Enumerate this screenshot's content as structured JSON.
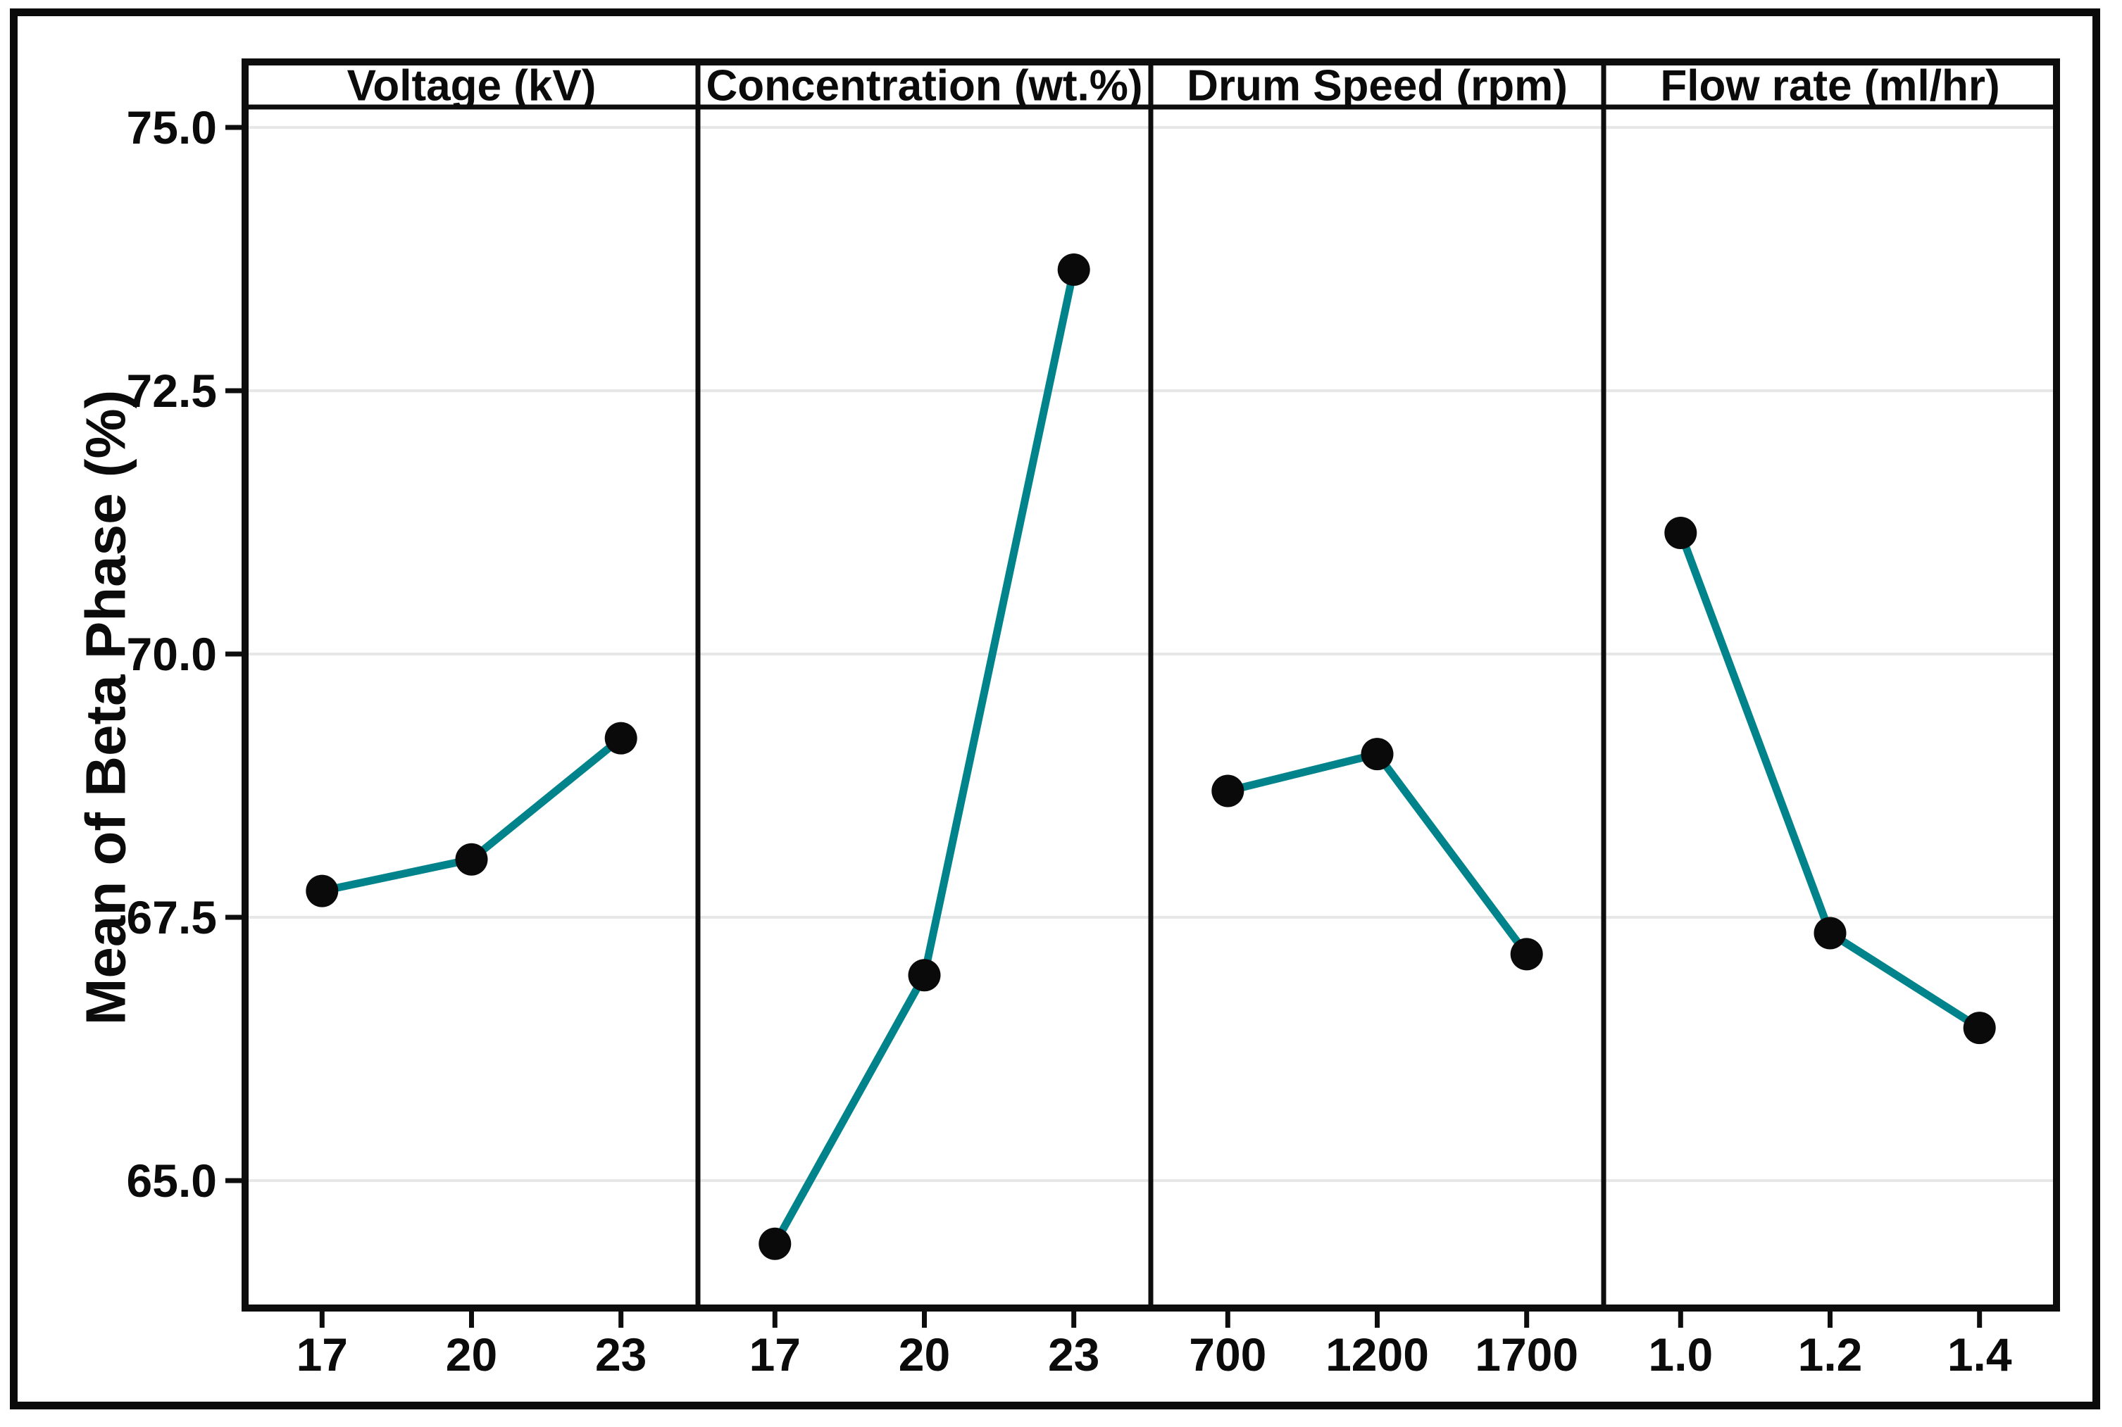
{
  "figure": {
    "kind": "main-effects-plot"
  },
  "chart_data": {
    "type": "line",
    "title": "",
    "ylabel": "Mean of Beta Phase (%)",
    "ylim": [
      63.8,
      75.2
    ],
    "ytick_labels": [
      "75.0",
      "72.5",
      "70.0",
      "67.5",
      "65.0"
    ],
    "ytick_values": [
      75.0,
      72.5,
      70.0,
      67.5,
      65.0
    ],
    "grid": "horizontal-gridlines-on",
    "legend_position": "none",
    "line_color": "#00838A",
    "marker_color": "#0a0a0a",
    "frame_color": "#0d0d0d",
    "gridline_color": "#e7e7e7",
    "panels": [
      {
        "title": "Voltage (kV)",
        "categories": [
          "17",
          "20",
          "23"
        ],
        "values": [
          67.75,
          68.05,
          69.2
        ]
      },
      {
        "title": "Concentration (wt.%)",
        "categories": [
          "17",
          "20",
          "23"
        ],
        "values": [
          64.4,
          66.95,
          73.65
        ]
      },
      {
        "title": "Drum Speed (rpm)",
        "categories": [
          "700",
          "1200",
          "1700"
        ],
        "values": [
          68.7,
          69.05,
          67.15
        ]
      },
      {
        "title": "Flow rate (ml/hr)",
        "categories": [
          "1.0",
          "1.2",
          "1.4"
        ],
        "values": [
          71.15,
          67.35,
          66.45
        ]
      }
    ]
  }
}
